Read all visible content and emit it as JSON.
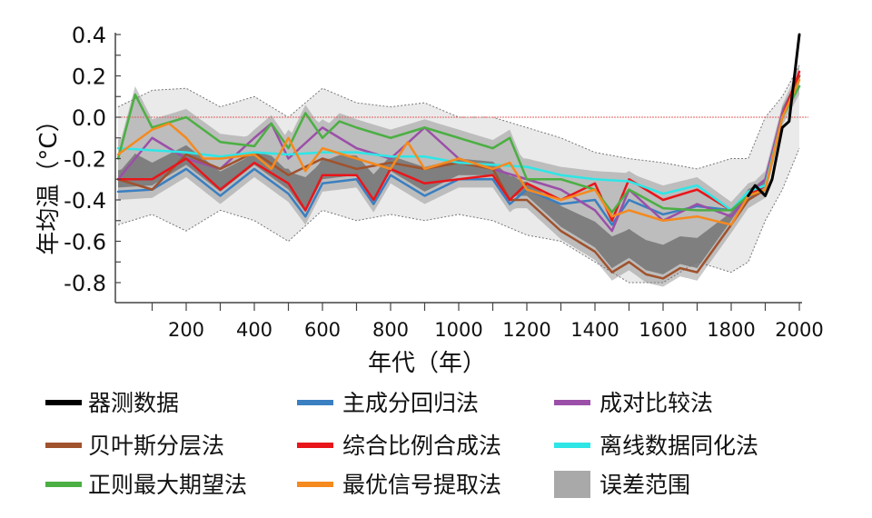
{
  "chart_data": {
    "type": "line",
    "xlabel": "年代（年）",
    "ylabel": "年均温（°C）",
    "xlim": [
      0,
      2000
    ],
    "ylim": [
      -0.9,
      0.4
    ],
    "xticks": [
      200,
      400,
      600,
      800,
      1000,
      1200,
      1400,
      1600,
      1800,
      2000
    ],
    "yticks": [
      0.4,
      0.2,
      0.0,
      -0.2,
      -0.4,
      -0.6,
      -0.8
    ],
    "ytick_labels": [
      "0.4",
      "0.2",
      "0.0",
      "-0.2",
      "-0.4",
      "-0.6",
      "-0.8"
    ],
    "reference_line": {
      "y": 0.0,
      "color": "#e06060",
      "style": "dotted"
    },
    "grid": false,
    "legend_placement": "bottom",
    "series": [
      {
        "name": "器测数据",
        "color": "#000000",
        "x": [
          1850,
          1870,
          1900,
          1920,
          1950,
          1970,
          2000
        ],
        "y": [
          -0.38,
          -0.33,
          -0.38,
          -0.3,
          -0.05,
          -0.02,
          0.4
        ]
      },
      {
        "name": "主成分回归法",
        "color": "#3a7fc1",
        "x": [
          0,
          100,
          200,
          300,
          400,
          500,
          550,
          600,
          700,
          750,
          800,
          900,
          1000,
          1100,
          1150,
          1200,
          1300,
          1400,
          1450,
          1500,
          1600,
          1700,
          1800,
          1850,
          1900,
          1950,
          2000
        ],
        "y": [
          -0.36,
          -0.35,
          -0.25,
          -0.38,
          -0.25,
          -0.37,
          -0.48,
          -0.32,
          -0.3,
          -0.42,
          -0.28,
          -0.38,
          -0.3,
          -0.3,
          -0.42,
          -0.35,
          -0.42,
          -0.4,
          -0.52,
          -0.4,
          -0.47,
          -0.43,
          -0.45,
          -0.4,
          -0.33,
          0.0,
          0.2
        ]
      },
      {
        "name": "成对比较法",
        "color": "#9b4fa8",
        "x": [
          0,
          100,
          200,
          300,
          400,
          450,
          500,
          600,
          700,
          800,
          900,
          1000,
          1100,
          1200,
          1300,
          1400,
          1450,
          1500,
          1600,
          1700,
          1800,
          1850,
          1900,
          1950,
          2000
        ],
        "y": [
          -0.3,
          -0.1,
          -0.2,
          -0.25,
          -0.1,
          -0.03,
          -0.2,
          -0.05,
          -0.15,
          -0.2,
          -0.05,
          -0.2,
          -0.25,
          -0.3,
          -0.35,
          -0.45,
          -0.55,
          -0.35,
          -0.5,
          -0.42,
          -0.48,
          -0.38,
          -0.3,
          0.02,
          0.2
        ]
      },
      {
        "name": "贝叶斯分层法",
        "color": "#a0522d",
        "x": [
          0,
          100,
          200,
          300,
          400,
          500,
          600,
          700,
          800,
          900,
          1000,
          1100,
          1150,
          1200,
          1300,
          1400,
          1450,
          1500,
          1550,
          1600,
          1650,
          1700,
          1800,
          1850,
          1900,
          1950,
          2000
        ],
        "y": [
          -0.3,
          -0.35,
          -0.18,
          -0.25,
          -0.17,
          -0.28,
          -0.2,
          -0.25,
          -0.22,
          -0.25,
          -0.22,
          -0.25,
          -0.4,
          -0.4,
          -0.55,
          -0.65,
          -0.75,
          -0.7,
          -0.76,
          -0.78,
          -0.73,
          -0.75,
          -0.52,
          -0.4,
          -0.35,
          0.0,
          0.2
        ]
      },
      {
        "name": "综合比例合成法",
        "color": "#e8161b",
        "x": [
          0,
          100,
          200,
          300,
          400,
          500,
          550,
          600,
          700,
          750,
          800,
          900,
          1000,
          1100,
          1150,
          1200,
          1300,
          1400,
          1450,
          1500,
          1600,
          1700,
          1800,
          1850,
          1900,
          1950,
          2000
        ],
        "y": [
          -0.3,
          -0.3,
          -0.2,
          -0.35,
          -0.22,
          -0.32,
          -0.45,
          -0.28,
          -0.28,
          -0.4,
          -0.25,
          -0.32,
          -0.3,
          -0.28,
          -0.4,
          -0.32,
          -0.4,
          -0.32,
          -0.5,
          -0.3,
          -0.4,
          -0.35,
          -0.45,
          -0.38,
          -0.33,
          0.0,
          0.22
        ]
      },
      {
        "name": "离线数据同化法",
        "color": "#2ee6e6",
        "x": [
          0,
          100,
          200,
          300,
          400,
          500,
          600,
          700,
          800,
          900,
          1000,
          1100,
          1200,
          1300,
          1400,
          1500,
          1600,
          1700,
          1800,
          1850,
          1900,
          1950,
          2000
        ],
        "y": [
          -0.15,
          -0.16,
          -0.17,
          -0.19,
          -0.17,
          -0.18,
          -0.17,
          -0.17,
          -0.19,
          -0.19,
          -0.22,
          -0.23,
          -0.24,
          -0.28,
          -0.3,
          -0.31,
          -0.37,
          -0.33,
          -0.45,
          -0.36,
          -0.33,
          0.0,
          0.15
        ]
      },
      {
        "name": "正则最大期望法",
        "color": "#4caf43",
        "x": [
          0,
          50,
          100,
          200,
          300,
          400,
          450,
          500,
          550,
          600,
          650,
          700,
          800,
          900,
          1000,
          1100,
          1150,
          1200,
          1300,
          1400,
          1450,
          1500,
          1600,
          1700,
          1800,
          1850,
          1900,
          1950,
          2000
        ],
        "y": [
          -0.2,
          0.11,
          -0.05,
          0.0,
          -0.12,
          -0.14,
          -0.03,
          -0.15,
          0.02,
          -0.1,
          -0.02,
          -0.05,
          -0.1,
          -0.05,
          -0.1,
          -0.15,
          -0.1,
          -0.3,
          -0.3,
          -0.35,
          -0.46,
          -0.35,
          -0.44,
          -0.45,
          -0.45,
          -0.38,
          -0.35,
          0.0,
          0.15
        ]
      },
      {
        "name": "最优信号提取法",
        "color": "#f58a1f",
        "x": [
          0,
          100,
          150,
          200,
          250,
          300,
          400,
          450,
          500,
          550,
          600,
          700,
          800,
          850,
          900,
          1000,
          1100,
          1150,
          1200,
          1300,
          1400,
          1450,
          1500,
          1600,
          1700,
          1800,
          1850,
          1900,
          1950,
          2000
        ],
        "y": [
          -0.18,
          -0.06,
          -0.03,
          -0.1,
          -0.2,
          -0.2,
          -0.18,
          -0.25,
          -0.1,
          -0.26,
          -0.15,
          -0.2,
          -0.25,
          -0.12,
          -0.25,
          -0.2,
          -0.25,
          -0.22,
          -0.35,
          -0.4,
          -0.35,
          -0.48,
          -0.45,
          -0.5,
          -0.48,
          -0.52,
          -0.38,
          -0.35,
          0.0,
          0.18
        ]
      }
    ],
    "error_range": {
      "name": "误差范围",
      "color": "#a9a9a9",
      "x": [
        0,
        100,
        200,
        300,
        400,
        500,
        600,
        700,
        800,
        900,
        1000,
        1100,
        1200,
        1300,
        1400,
        1500,
        1600,
        1700,
        1800,
        1850,
        1900,
        1950,
        2000
      ],
      "upper": [
        0.05,
        0.13,
        0.14,
        0.05,
        0.1,
        0.0,
        0.14,
        0.07,
        0.05,
        0.07,
        0.0,
        0.0,
        -0.05,
        -0.1,
        -0.17,
        -0.2,
        -0.22,
        -0.25,
        -0.2,
        -0.2,
        0.0,
        0.1,
        0.25
      ],
      "lower": [
        -0.52,
        -0.47,
        -0.55,
        -0.45,
        -0.5,
        -0.6,
        -0.45,
        -0.5,
        -0.47,
        -0.5,
        -0.47,
        -0.5,
        -0.57,
        -0.6,
        -0.7,
        -0.8,
        -0.8,
        -0.7,
        -0.75,
        -0.7,
        -0.5,
        -0.35,
        -0.15
      ]
    },
    "legend": [
      [
        "器测数据",
        "主成分回归法",
        "成对比较法"
      ],
      [
        "贝叶斯分层法",
        "综合比例合成法",
        "离线数据同化法"
      ],
      [
        "正则最大期望法",
        "最优信号提取法",
        "误差范围"
      ]
    ]
  }
}
